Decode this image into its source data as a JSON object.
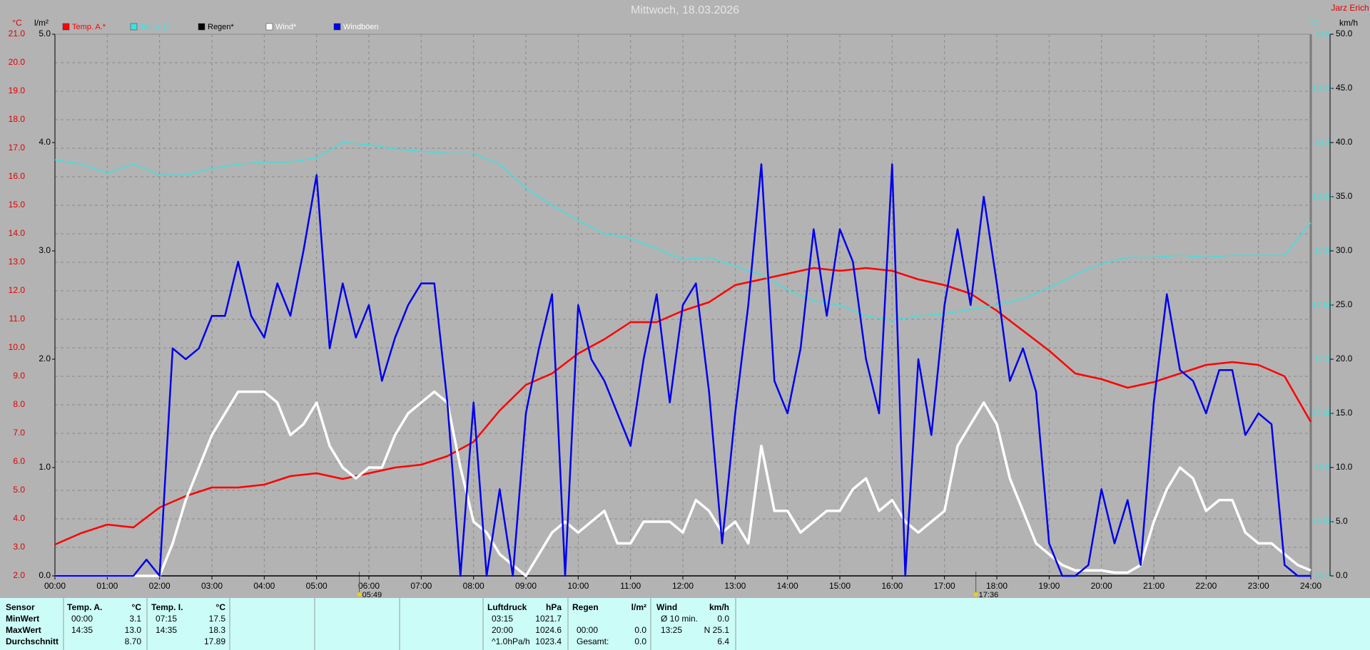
{
  "header": {
    "station": "Jarz Erich"
  },
  "chart_data": {
    "type": "line",
    "title": "Mittwoch, 18.03.2026",
    "xlim": [
      0,
      24
    ],
    "xticks": [
      {
        "value": 0,
        "label": "00:00"
      },
      {
        "value": 1,
        "label": "01:00"
      },
      {
        "value": 2,
        "label": "02:00"
      },
      {
        "value": 3,
        "label": "03:00"
      },
      {
        "value": 4,
        "label": "04:00"
      },
      {
        "value": 5,
        "label": "05:00"
      },
      {
        "value": 6,
        "label": "06:00"
      },
      {
        "value": 7,
        "label": "07:00"
      },
      {
        "value": 8,
        "label": "08:00"
      },
      {
        "value": 9,
        "label": "09:00"
      },
      {
        "value": 10,
        "label": "10:00"
      },
      {
        "value": 11,
        "label": "11:00"
      },
      {
        "value": 12,
        "label": "12:00"
      },
      {
        "value": 13,
        "label": "13:00"
      },
      {
        "value": 14,
        "label": "14:00"
      },
      {
        "value": 15,
        "label": "15:00"
      },
      {
        "value": 16,
        "label": "16:00"
      },
      {
        "value": 17,
        "label": "17:00"
      },
      {
        "value": 18,
        "label": "18:00"
      },
      {
        "value": 19,
        "label": "19:00"
      },
      {
        "value": 20,
        "label": "20:00"
      },
      {
        "value": 21,
        "label": "21:00"
      },
      {
        "value": 22,
        "label": "22:00"
      },
      {
        "value": 23,
        "label": "23:00"
      },
      {
        "value": 24,
        "label": "24:00"
      }
    ],
    "y_label": "°C",
    "ylim": [
      2,
      21
    ],
    "yticks": [
      {
        "value": 2,
        "label": "2.0"
      },
      {
        "value": 3,
        "label": "3.0"
      },
      {
        "value": 4,
        "label": "4.0"
      },
      {
        "value": 5,
        "label": "5.0"
      },
      {
        "value": 6,
        "label": "6.0"
      },
      {
        "value": 7,
        "label": "7.0"
      },
      {
        "value": 8,
        "label": "8.0"
      },
      {
        "value": 9,
        "label": "9.0"
      },
      {
        "value": 10,
        "label": "10.0"
      },
      {
        "value": 11,
        "label": "11.0"
      },
      {
        "value": 12,
        "label": "12.0"
      },
      {
        "value": 13,
        "label": "13.0"
      },
      {
        "value": 14,
        "label": "14.0"
      },
      {
        "value": 15,
        "label": "15.0"
      },
      {
        "value": 16,
        "label": "16.0"
      },
      {
        "value": 17,
        "label": "17.0"
      },
      {
        "value": 18,
        "label": "18.0"
      },
      {
        "value": 19,
        "label": "19.0"
      },
      {
        "value": 20,
        "label": "20.0"
      },
      {
        "value": 21,
        "label": "21.0"
      }
    ],
    "y2_label": "l/m²",
    "y2lim": [
      0,
      5
    ],
    "y2ticks": [
      {
        "value": 0,
        "label": "0.0"
      },
      {
        "value": 1,
        "label": "1.0"
      },
      {
        "value": 2,
        "label": "2.0"
      },
      {
        "value": 3,
        "label": "3.0"
      },
      {
        "value": 4,
        "label": "4.0"
      },
      {
        "value": 5,
        "label": "5.0"
      }
    ],
    "y3_label": "km/h",
    "y3lim": [
      0,
      50
    ],
    "y3ticks": [
      {
        "value": 0,
        "label": "0.0"
      },
      {
        "value": 5,
        "label": "5.0"
      },
      {
        "value": 10,
        "label": "10.0"
      },
      {
        "value": 15,
        "label": "15.0"
      },
      {
        "value": 20,
        "label": "20.0"
      },
      {
        "value": 25,
        "label": "25.0"
      },
      {
        "value": 30,
        "label": "30.0"
      },
      {
        "value": 35,
        "label": "35.0"
      },
      {
        "value": 40,
        "label": "40.0"
      },
      {
        "value": 45,
        "label": "45.0"
      },
      {
        "value": 50,
        "label": "50.0"
      }
    ],
    "y4_label": "°C",
    "y4lim": [
      16.3,
      18.8
    ],
    "y4ticks": [
      16.3,
      16.55,
      16.8,
      17.05,
      17.3,
      17.55,
      17.8,
      18.05,
      18.3,
      18.55,
      18.8
    ],
    "grid": true,
    "markers": [
      {
        "value": 5.817,
        "label": "05:49"
      },
      {
        "value": 17.6,
        "label": "17:36"
      }
    ],
    "x": [
      0,
      0.25,
      0.5,
      0.75,
      1,
      1.25,
      1.5,
      1.75,
      2,
      2.25,
      2.5,
      2.75,
      3,
      3.25,
      3.5,
      3.75,
      4,
      4.25,
      4.5,
      4.75,
      5,
      5.25,
      5.5,
      5.75,
      6,
      6.25,
      6.5,
      6.75,
      7,
      7.25,
      7.5,
      7.75,
      8,
      8.25,
      8.5,
      8.75,
      9,
      9.25,
      9.5,
      9.75,
      10,
      10.25,
      10.5,
      10.75,
      11,
      11.25,
      11.5,
      11.75,
      12,
      12.25,
      12.5,
      12.75,
      13,
      13.25,
      13.5,
      13.75,
      14,
      14.25,
      14.5,
      14.75,
      15,
      15.25,
      15.5,
      15.75,
      16,
      16.25,
      16.5,
      16.75,
      17,
      17.25,
      17.5,
      17.75,
      18,
      18.25,
      18.5,
      18.75,
      19,
      19.25,
      19.5,
      19.75,
      20,
      20.25,
      20.5,
      20.75,
      21,
      21.25,
      21.5,
      21.75,
      22,
      22.25,
      22.5,
      22.75,
      23,
      23.25,
      23.5,
      23.75,
      24
    ],
    "series": [
      {
        "name": "Temp. A.*",
        "color": "#ff0000",
        "axis": "y",
        "width": 2.5,
        "x": [
          0,
          0.5,
          1,
          1.5,
          2,
          2.5,
          3,
          3.5,
          4,
          4.5,
          5,
          5.5,
          6,
          6.5,
          7,
          7.5,
          8,
          8.5,
          9,
          9.5,
          10,
          10.5,
          11,
          11.5,
          12,
          12.5,
          13,
          13.5,
          14,
          14.5,
          15,
          15.5,
          16,
          16.5,
          17,
          17.5,
          18,
          18.5,
          19,
          19.5,
          20,
          20.5,
          21,
          21.5,
          22,
          22.5,
          23,
          23.5,
          24
        ],
        "values": [
          3.1,
          3.5,
          3.8,
          3.7,
          4.4,
          4.8,
          5.1,
          5.1,
          5.2,
          5.5,
          5.6,
          5.4,
          5.6,
          5.8,
          5.9,
          6.2,
          6.7,
          7.8,
          8.7,
          9.1,
          9.8,
          10.3,
          10.9,
          10.9,
          11.3,
          11.6,
          12.2,
          12.4,
          12.6,
          12.8,
          12.7,
          12.8,
          12.7,
          12.4,
          12.2,
          11.9,
          11.3,
          10.6,
          9.9,
          9.1,
          8.9,
          8.6,
          8.8,
          9.1,
          9.4,
          9.5,
          9.4,
          9.0,
          7.4
        ]
      },
      {
        "name": "Temp. I.*",
        "color": "#3fe0e0",
        "axis": "y4",
        "width": 1.5,
        "x": [
          0,
          0.5,
          1,
          1.5,
          2,
          2.5,
          3,
          3.5,
          4,
          4.5,
          5,
          5.5,
          6,
          6.5,
          7,
          7.5,
          8,
          8.5,
          9,
          9.5,
          10,
          10.5,
          11,
          11.5,
          12,
          12.5,
          13,
          13.5,
          14,
          14.5,
          15,
          15.5,
          16,
          16.5,
          17,
          17.5,
          18,
          18.5,
          19,
          19.5,
          20,
          20.5,
          21,
          21.5,
          22,
          22.5,
          23,
          23.5,
          24
        ],
        "values": [
          18.22,
          18.2,
          18.16,
          18.2,
          18.15,
          18.15,
          18.18,
          18.2,
          18.21,
          18.21,
          18.23,
          18.3,
          18.29,
          18.27,
          18.26,
          18.25,
          18.25,
          18.2,
          18.09,
          18.01,
          17.94,
          17.88,
          17.86,
          17.81,
          17.76,
          17.77,
          17.73,
          17.69,
          17.62,
          17.57,
          17.55,
          17.5,
          17.48,
          17.5,
          17.51,
          17.53,
          17.55,
          17.58,
          17.63,
          17.69,
          17.74,
          17.77,
          17.77,
          17.78,
          17.77,
          17.78,
          17.78,
          17.78,
          17.93
        ]
      },
      {
        "name": "Regen*",
        "color": "#000000",
        "axis": "y2",
        "width": 1.5,
        "x": [
          0,
          24
        ],
        "values": [
          0,
          0
        ]
      },
      {
        "name": "Wind*",
        "color": "#ffffff",
        "axis": "y3",
        "width": 3.5,
        "values": [
          0,
          0,
          0,
          0,
          0,
          0,
          0,
          0,
          0,
          3,
          7,
          10,
          13,
          15,
          17,
          17,
          17,
          16,
          13,
          14,
          16,
          12,
          10,
          9,
          10,
          10,
          13,
          15,
          16,
          17,
          16,
          10,
          5,
          4,
          2,
          1,
          0,
          2,
          4,
          5,
          4,
          5,
          6,
          3,
          3,
          5,
          5,
          5,
          4,
          7,
          6,
          4,
          5,
          3,
          12,
          6,
          6,
          4,
          5,
          6,
          6,
          8,
          9,
          6,
          7,
          5,
          4,
          5,
          6,
          12,
          14,
          16,
          14,
          9,
          6,
          3,
          2,
          1,
          0.5,
          0.5,
          0.5,
          0.3,
          0.3,
          1,
          5,
          8,
          10,
          9,
          6,
          7,
          7,
          4,
          3,
          3,
          2,
          1,
          0.5
        ]
      },
      {
        "name": "Windböen",
        "color": "#0000ee",
        "text_color": "#ffffff",
        "axis": "y3",
        "width": 2.5,
        "values": [
          0,
          0,
          0,
          0,
          0,
          0,
          0,
          1.5,
          0,
          21,
          20,
          21,
          24,
          24,
          29,
          24,
          22,
          27,
          24,
          30,
          37,
          21,
          27,
          22,
          25,
          18,
          22,
          25,
          27,
          27,
          16,
          0,
          16,
          0,
          8,
          0,
          15,
          21,
          26,
          0,
          25,
          20,
          18,
          15,
          12,
          20,
          26,
          16,
          25,
          27,
          17,
          3,
          15,
          25,
          38,
          18,
          15,
          21,
          32,
          24,
          32,
          29,
          20,
          15,
          38,
          0,
          20,
          13,
          25,
          32,
          25,
          35,
          27,
          18,
          21,
          17,
          3,
          0,
          0,
          1,
          8,
          3,
          7,
          1,
          16,
          26,
          19,
          18,
          15,
          19,
          19,
          13,
          15,
          14,
          1,
          0,
          0
        ]
      }
    ]
  },
  "table": {
    "header": {
      "sensor": "Sensor",
      "temp_a": [
        "Temp. A.",
        "°C"
      ],
      "temp_i": [
        "Temp. I.",
        "°C"
      ],
      "pressure": [
        "Luftdruck",
        "hPa"
      ],
      "rain": [
        "Regen",
        "l/m²"
      ],
      "wind": [
        "Wind",
        "km/h"
      ]
    },
    "rows": [
      {
        "label": "MinWert",
        "temp_a": {
          "time": "00:00",
          "value": "3.1"
        },
        "temp_i": {
          "time": "07:15",
          "value": "17.5"
        },
        "pressure": {
          "time": "03:15",
          "value": "1021.7"
        },
        "wind": {
          "time": "Ø 10 min.",
          "value": "0.0"
        }
      },
      {
        "label": "MaxWert",
        "temp_a": {
          "time": "14:35",
          "value": "13.0"
        },
        "temp_i": {
          "time": "14:35",
          "value": "18.3"
        },
        "pressure": {
          "time": "20:00",
          "value": "1024.6"
        },
        "rain": {
          "time": "00:00",
          "value": "0.0"
        },
        "wind": {
          "time": "13:25",
          "value": "N 25.1"
        }
      },
      {
        "label": "Durchschnitt",
        "temp_a": {
          "value": "8.70"
        },
        "temp_i": {
          "value": "17.89"
        },
        "pressure": {
          "time": "^1.0hPa/h",
          "value": "1023.4"
        },
        "rain": {
          "time": "Gesamt:",
          "value": "0.0"
        },
        "wind": {
          "value": "6.4"
        }
      }
    ]
  }
}
